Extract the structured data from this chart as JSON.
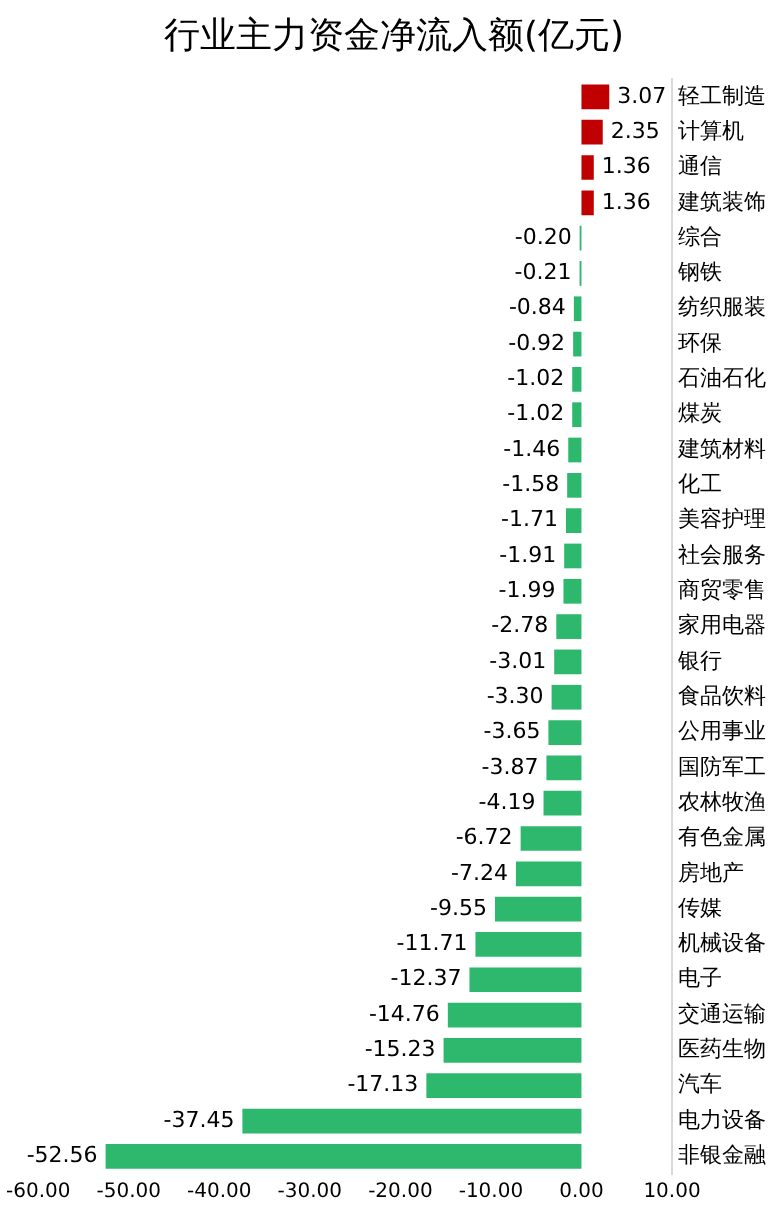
{
  "chart_data": {
    "type": "bar",
    "orientation": "horizontal",
    "title": "行业主力资金净流入额(亿元)",
    "categories": [
      "轻工制造",
      "计算机",
      "通信",
      "建筑装饰",
      "综合",
      "钢铁",
      "纺织服装",
      "环保",
      "石油石化",
      "煤炭",
      "建筑材料",
      "化工",
      "美容护理",
      "社会服务",
      "商贸零售",
      "家用电器",
      "银行",
      "食品饮料",
      "公用事业",
      "国防军工",
      "农林牧渔",
      "有色金属",
      "房地产",
      "传媒",
      "机械设备",
      "电子",
      "交通运输",
      "医药生物",
      "汽车",
      "电力设备",
      "非银金融"
    ],
    "values": [
      3.07,
      2.35,
      1.36,
      1.36,
      -0.2,
      -0.21,
      -0.84,
      -0.92,
      -1.02,
      -1.02,
      -1.46,
      -1.58,
      -1.71,
      -1.91,
      -1.99,
      -2.78,
      -3.01,
      -3.3,
      -3.65,
      -3.87,
      -4.19,
      -6.72,
      -7.24,
      -9.55,
      -11.71,
      -12.37,
      -14.76,
      -15.23,
      -17.13,
      -37.45,
      -52.56
    ],
    "value_labels": [
      "3.07",
      "2.35",
      "1.36",
      "1.36",
      "-0.20",
      "-0.21",
      "-0.84",
      "-0.92",
      "-1.02",
      "-1.02",
      "-1.46",
      "-1.58",
      "-1.71",
      "-1.91",
      "-1.99",
      "-2.78",
      "-3.01",
      "-3.30",
      "-3.65",
      "-3.87",
      "-4.19",
      "-6.72",
      "-7.24",
      "-9.55",
      "-11.71",
      "-12.37",
      "-14.76",
      "-15.23",
      "-17.13",
      "-37.45",
      "-52.56"
    ],
    "colors": [
      "#c00000",
      "#c00000",
      "#c00000",
      "#c00000",
      "#2db86e",
      "#2db86e",
      "#2db86e",
      "#2db86e",
      "#2db86e",
      "#2db86e",
      "#2db86e",
      "#2db86e",
      "#2db86e",
      "#2db86e",
      "#2db86e",
      "#2db86e",
      "#2db86e",
      "#2db86e",
      "#2db86e",
      "#2db86e",
      "#2db86e",
      "#2db86e",
      "#2db86e",
      "#2db86e",
      "#2db86e",
      "#2db86e",
      "#2db86e",
      "#2db86e",
      "#2db86e",
      "#2db86e",
      "#2db86e"
    ],
    "xlim": [
      -60,
      10
    ],
    "xticks": [
      {
        "value": -60,
        "label": "-60.00"
      },
      {
        "value": -50,
        "label": "-50.00"
      },
      {
        "value": -40,
        "label": "-40.00"
      },
      {
        "value": -30,
        "label": "-30.00"
      },
      {
        "value": -20,
        "label": "-20.00"
      },
      {
        "value": -10,
        "label": "-10.00"
      },
      {
        "value": 0,
        "label": "0.00"
      },
      {
        "value": 10,
        "label": "10.00"
      }
    ],
    "grid": false,
    "legend": false
  }
}
